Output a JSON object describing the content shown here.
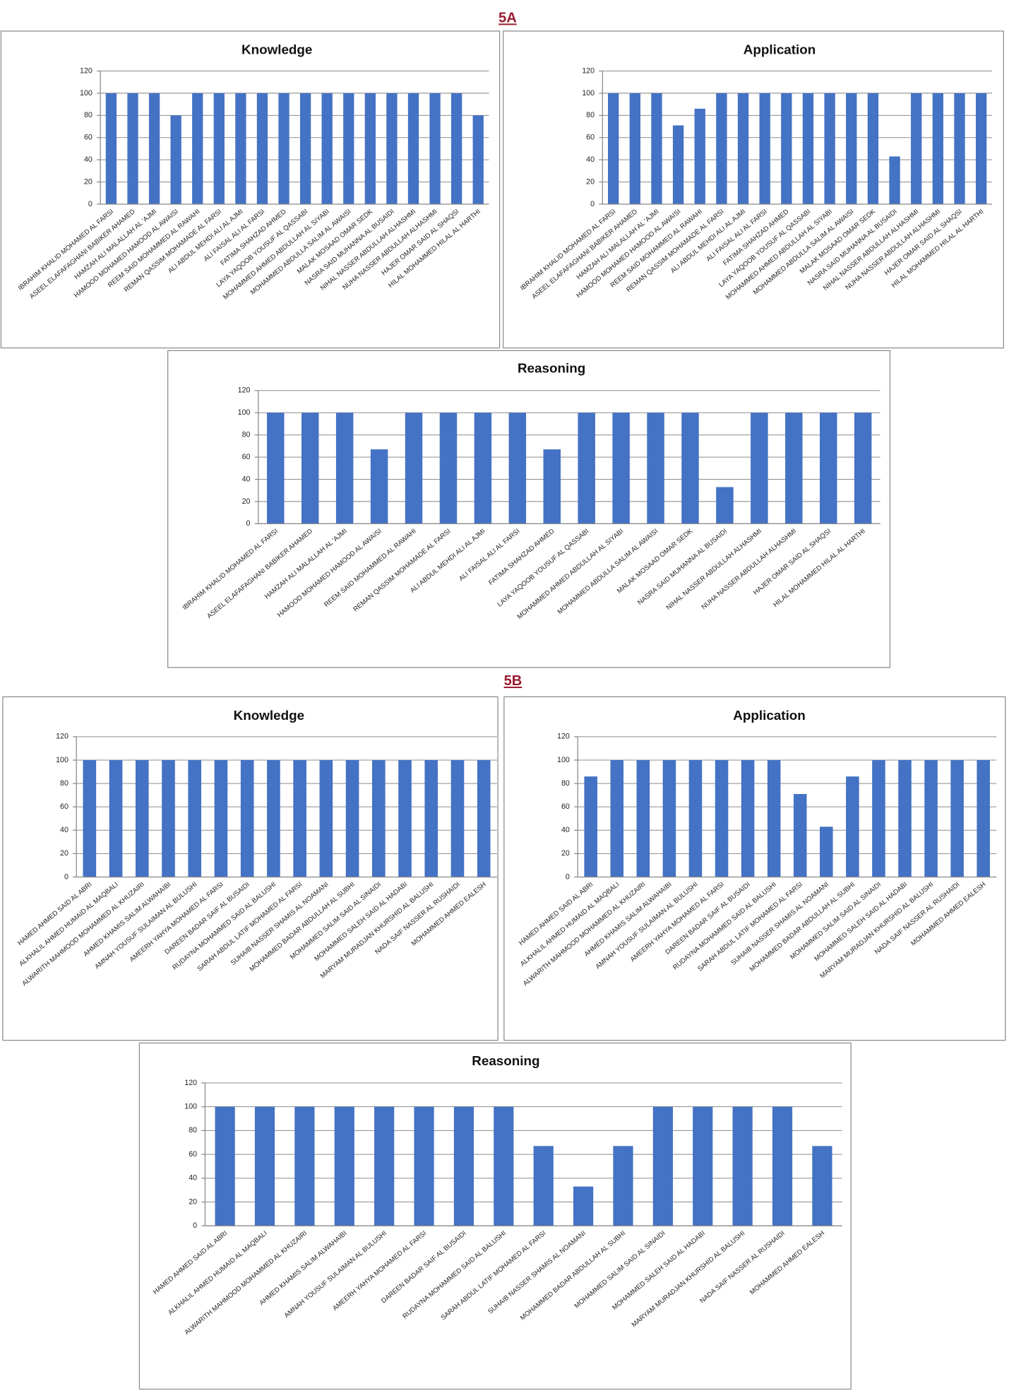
{
  "headings": [
    "5A",
    "5B"
  ],
  "chart_data": [
    {
      "type": "bar",
      "title": "Knowledge",
      "color": "#4472c4",
      "grid": true,
      "ylim": [
        0,
        120
      ],
      "yticks": [
        0,
        20,
        40,
        60,
        80,
        100,
        120
      ],
      "categories": [
        "IBRAHIM KHALID MOHAMED AL FARSI",
        "ASEEL ELAFAFAGHANI BABIKER AHAMED",
        "HAMZAH ALI MALALLAH AL 'AJMI",
        "HAMOOD MOHAMED HAMOOD AL AWAISI",
        "REEM SAID MOHAMMED AL RAWAHI",
        "REMAN QASSIM MOHAMADE AL FARSI",
        "ALI ABDUL MEHDI ALI AL AJMI",
        "ALI FAISAL ALI AL FARSI",
        "FATIMA SHAHZAD AHMED",
        "LAYA YAQOOB YOUSUF AL QASSABI",
        "MOHAMMED AHMED ABDULLAH AL SIYABI",
        "MOHAMMED ABDULLA SALIM AL AWAISI",
        "MALAK MOSAAD OMAR SEDK",
        "NASRA SAID MUHANNA AL BUSAIDI",
        "NIHAL NASSER ABDULLAH ALHASHMI",
        "NUHA NASSER ABDULLAH ALHASHMI",
        "HAJER OMAR SAID AL SHAQSI",
        "HILAL MOHAMMED HILAL AL HARTHI"
      ],
      "values": [
        100,
        100,
        100,
        80,
        100,
        100,
        100,
        100,
        100,
        100,
        100,
        100,
        100,
        100,
        100,
        100,
        100,
        80
      ]
    },
    {
      "type": "bar",
      "title": "Application",
      "color": "#4472c4",
      "grid": true,
      "ylim": [
        0,
        120
      ],
      "yticks": [
        0,
        20,
        40,
        60,
        80,
        100,
        120
      ],
      "categories": [
        "IBRAHIM KHALID MOHAMED AL FARSI",
        "ASEEL ELAFAFAGHANI BABIKER AHAMED",
        "HAMZAH ALI MALALLAH AL 'AJMI",
        "HAMOOD MOHAMED HAMOOD AL AWAISI",
        "REEM SAID MOHAMMED AL RAWAHI",
        "REMAN QASSIM MOHAMADE AL FARSI",
        "ALI ABDUL MEHDI ALI AL AJMI",
        "ALI FAISAL ALI AL FARSI",
        "FATIMA SHAHZAD AHMED",
        "LAYA YAQOOB YOUSUF AL QASSABI",
        "MOHAMMED AHMED ABDULLAH AL SIYABI",
        "MOHAMMED ABDULLA SALIM AL AWAISI",
        "MALAK MOSAAD OMAR SEDK",
        "NASRA SAID MUHANNA AL BUSAIDI",
        "NIHAL NASSER ABDULLAH ALHASHMI",
        "NUHA NASSER ABDULLAH ALHASHMI",
        "HAJER OMAR SAID AL SHAQSI",
        "HILAL MOHAMMED HILAL AL HARTHI"
      ],
      "values": [
        100,
        100,
        100,
        71,
        86,
        100,
        100,
        100,
        100,
        100,
        100,
        100,
        100,
        43,
        100,
        100,
        100,
        100
      ]
    },
    {
      "type": "bar",
      "title": "Reasoning",
      "color": "#4472c4",
      "grid": true,
      "ylim": [
        0,
        120
      ],
      "yticks": [
        0,
        20,
        40,
        60,
        80,
        100,
        120
      ],
      "categories": [
        "IBRAHIM KHALID MOHAMED AL FARSI",
        "ASEEL ELAFAFAGHANI BABIKER AHAMED",
        "HAMZAH ALI MALALLAH AL 'AJMI",
        "HAMOOD MOHAMED HAMOOD AL AWAISI",
        "REEM SAID MOHAMMED AL RAWAHI",
        "REMAN QASSIM MOHAMADE AL FARSI",
        "ALI ABDUL MEHDI ALI AL AJMI",
        "ALI FAISAL ALI AL FARSI",
        "FATIMA SHAHZAD AHMED",
        "LAYA YAQOOB YOUSUF AL QASSABI",
        "MOHAMMED AHMED ABDULLAH AL SIYABI",
        "MOHAMMED ABDULLA SALIM AL AWAISI",
        "MALAK MOSAAD OMAR SEDK",
        "NASRA SAID MUHANNA AL BUSAIDI",
        "NIHAL NASSER ABDULLAH ALHASHMI",
        "NUHA NASSER ABDULLAH ALHASHMI",
        "HAJER OMAR SAID AL SHAQSI",
        "HILAL MOHAMMED HILAL AL HARTHI"
      ],
      "values": [
        100,
        100,
        100,
        67,
        100,
        100,
        100,
        100,
        67,
        100,
        100,
        100,
        100,
        33,
        100,
        100,
        100,
        100
      ]
    },
    {
      "type": "bar",
      "title": "Knowledge",
      "color": "#4472c4",
      "grid": true,
      "ylim": [
        0,
        120
      ],
      "yticks": [
        0,
        20,
        40,
        60,
        80,
        100,
        120
      ],
      "categories": [
        "HAMED AHMED SAID AL ABRI",
        "ALKHALIL AHMED HUMAID AL MAQBALI",
        "ALWARITH MAHMOOD MOHAMMED AL KHUZAIRI",
        "AHMED KHAMIS SALIM ALWAHAIBI",
        "AMNAH YOUSUF SULAIMAN AL BULUSHI",
        "AMEERH YAHYA MOHAMED AL FARSI",
        "DAREEN BADAR SAIF AL BUSAIDI",
        "RUDAYNA MOHAMMED SAID AL BALUSHI",
        "SARAH ABDUL LATIF MOHAMED AL FARSI",
        "SUHAIB NASSER SHAMIS AL NOAMANI",
        "MOHAMMED BADAR ABDULLAH AL SUBHI",
        "MOHAMMED SALIM SAID AL SINAIDI",
        "MOHAMMED SALEH SAID AL HADABI",
        "MARYAM MURADJAN KHURSHID AL BALUSHI",
        "NADA SAIF NASSER AL RUSHAIDI",
        "MOHAMMED AHMED EALESH"
      ],
      "values": [
        100,
        100,
        100,
        100,
        100,
        100,
        100,
        100,
        100,
        100,
        100,
        100,
        100,
        100,
        100,
        100
      ]
    },
    {
      "type": "bar",
      "title": "Application",
      "color": "#4472c4",
      "grid": true,
      "ylim": [
        0,
        120
      ],
      "yticks": [
        0,
        20,
        40,
        60,
        80,
        100,
        120
      ],
      "categories": [
        "HAMED AHMED SAID AL ABRI",
        "ALKHALIL AHMED HUMAID AL MAQBALI",
        "ALWARITH MAHMOOD MOHAMMED AL KHUZAIRI",
        "AHMED KHAMIS SALIM ALWAHAIBI",
        "AMNAH YOUSUF SULAIMAN AL BULUSHI",
        "AMEERH YAHYA MOHAMED AL FARSI",
        "DAREEN BADAR SAIF AL BUSAIDI",
        "RUDAYNA MOHAMMED SAID AL BALUSHI",
        "SARAH ABDUL LATIF MOHAMED AL FARSI",
        "SUHAIB NASSER SHAMIS AL NOAMANI",
        "MOHAMMED BADAR ABDULLAH AL SUBHI",
        "MOHAMMED SALIM SAID AL SINAIDI",
        "MOHAMMED SALEH SAID AL HADABI",
        "MARYAM MURADJAN KHURSHID AL BALUSHI",
        "NADA SAIF NASSER AL RUSHAIDI",
        "MOHAMMED AHMED EALESH"
      ],
      "values": [
        86,
        100,
        100,
        100,
        100,
        100,
        100,
        100,
        71,
        43,
        86,
        100,
        100,
        100,
        100,
        100
      ]
    },
    {
      "type": "bar",
      "title": "Reasoning",
      "color": "#4472c4",
      "grid": true,
      "ylim": [
        0,
        120
      ],
      "yticks": [
        0,
        20,
        40,
        60,
        80,
        100,
        120
      ],
      "categories": [
        "HAMED AHMED SAID AL ABRI",
        "ALKHALIL AHMED HUMAID AL MAQBALI",
        "ALWARITH MAHMOOD MOHAMMED AL KHUZAIRI",
        "AHMED KHAMIS SALIM ALWAHAIBI",
        "AMNAH YOUSUF SULAIMAN AL BULUSHI",
        "AMEERH YAHYA MOHAMED AL FARSI",
        "DAREEN BADAR SAIF AL BUSAIDI",
        "RUDAYNA MOHAMMED SAID AL BALUSHI",
        "SARAH ABDUL LATIF MOHAMED AL FARSI",
        "SUHAIB NASSER SHAMIS AL NOAMANI",
        "MOHAMMED BADAR ABDULLAH AL SUBHI",
        "MOHAMMED SALIM SAID AL SINAIDI",
        "MOHAMMED SALEH SAID AL HADABI",
        "MARYAM MURADJAN KHURSHID AL BALUSHI",
        "NADA SAIF NASSER AL RUSHAIDI",
        "MOHAMMED AHMED EALESH"
      ],
      "values": [
        100,
        100,
        100,
        100,
        100,
        100,
        100,
        100,
        67,
        33,
        67,
        100,
        100,
        100,
        100,
        67
      ]
    }
  ]
}
